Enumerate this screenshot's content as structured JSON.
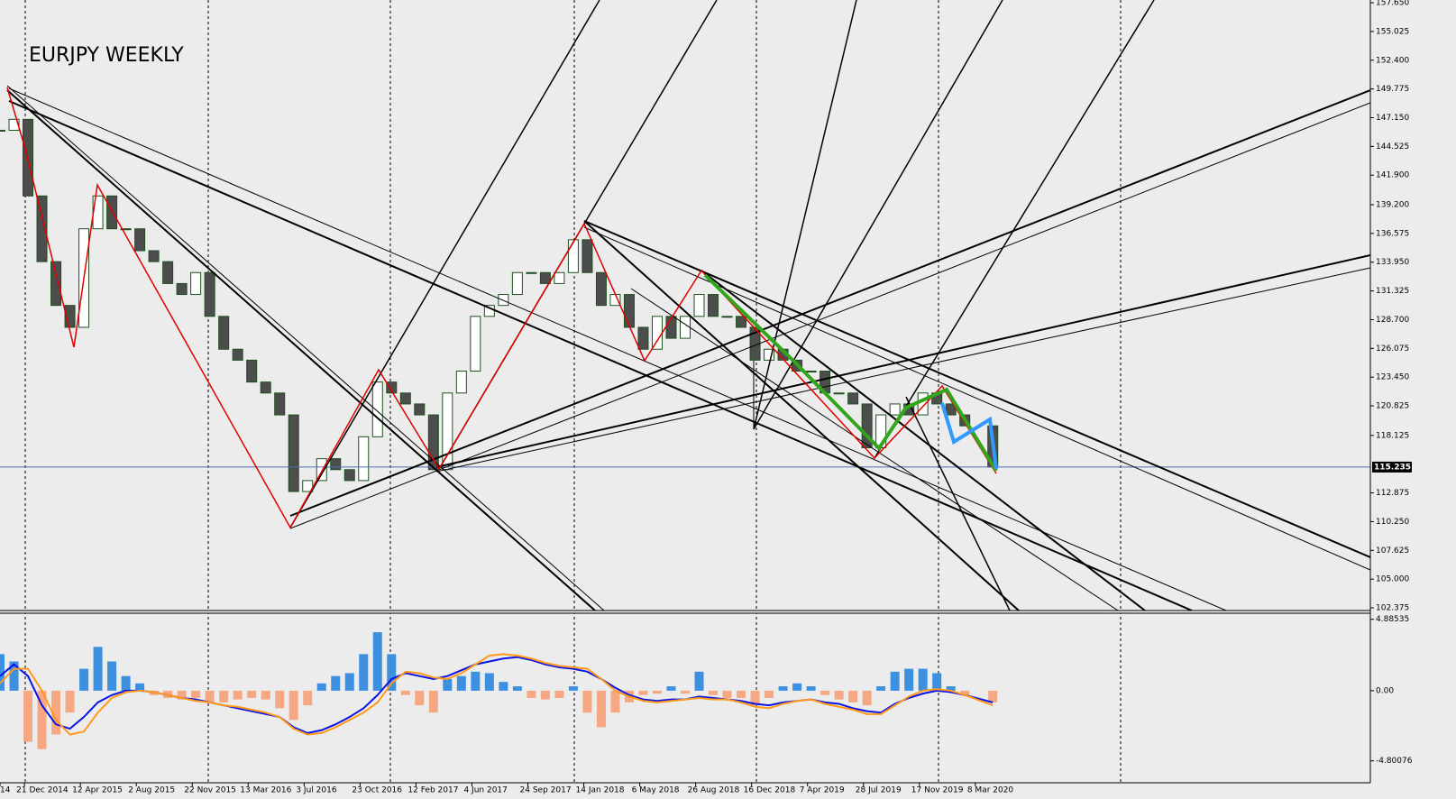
{
  "chart_data": [
    {
      "type": "candlestick",
      "title": "EURJPY WEEKLY",
      "x": [
        "2014-11-02",
        "2014-11-30",
        "2014-12-28",
        "2015-01-25",
        "2015-02-22",
        "2015-03-22",
        "2015-04-19",
        "2015-05-17",
        "2015-06-14",
        "2015-07-12",
        "2015-08-09",
        "2015-09-06",
        "2015-10-04",
        "2015-11-01",
        "2015-11-29",
        "2015-12-27",
        "2016-01-24",
        "2016-02-21",
        "2016-03-20",
        "2016-04-17",
        "2016-05-15",
        "2016-06-12",
        "2016-07-10",
        "2016-08-07",
        "2016-09-04",
        "2016-10-02",
        "2016-10-30",
        "2016-11-27",
        "2016-12-25",
        "2017-01-22",
        "2017-02-19",
        "2017-03-19",
        "2017-04-16",
        "2017-05-14",
        "2017-06-11",
        "2017-07-09",
        "2017-08-06",
        "2017-09-03",
        "2017-10-01",
        "2017-10-29",
        "2017-11-26",
        "2017-12-24",
        "2018-01-21",
        "2018-02-18",
        "2018-03-18",
        "2018-04-15",
        "2018-05-13",
        "2018-06-10",
        "2018-07-08",
        "2018-08-05",
        "2018-09-02",
        "2018-09-30",
        "2018-10-28",
        "2018-11-25",
        "2018-12-23",
        "2019-01-20",
        "2019-02-17",
        "2019-03-17",
        "2019-04-14",
        "2019-05-12",
        "2019-06-09",
        "2019-07-07",
        "2019-08-04",
        "2019-09-01",
        "2019-09-29",
        "2019-10-27",
        "2019-11-24",
        "2019-12-22",
        "2020-01-19",
        "2020-02-16",
        "2020-04-12"
      ],
      "values": [
        146,
        147,
        140,
        134,
        130,
        128,
        137,
        140,
        137,
        137,
        135,
        134,
        132,
        131,
        133,
        129,
        126,
        125,
        123,
        122,
        120,
        113,
        114,
        116,
        115,
        114,
        118,
        123,
        122,
        121,
        120,
        115,
        122,
        124,
        129,
        130,
        131,
        133,
        133,
        132,
        133,
        136,
        133,
        130,
        131,
        128,
        126,
        129,
        127,
        129,
        131,
        129,
        129,
        128,
        125,
        126,
        125,
        124,
        124,
        122,
        122,
        121,
        117,
        120,
        121,
        120,
        122,
        121,
        120,
        119,
        115.235
      ],
      "bull_color": "#ffffff",
      "bear_color": "#4d4d4d",
      "outline_color": "#1f4f1f",
      "last_price": {
        "value": 115.235,
        "label": "115.235"
      },
      "xlim": [
        "2014-11-02",
        "2022-05-08"
      ],
      "ylim": [
        102.13,
        157.9
      ],
      "xticks": [
        {
          "value": "2014-11-02",
          "label": "14"
        },
        {
          "value": "2014-12-21",
          "label": "21 Dec 2014"
        },
        {
          "value": "2015-04-12",
          "label": "12 Apr 2015"
        },
        {
          "value": "2015-08-02",
          "label": "2 Aug 2015"
        },
        {
          "value": "2015-11-22",
          "label": "22 Nov 2015"
        },
        {
          "value": "2016-03-13",
          "label": "13 Mar 2016"
        },
        {
          "value": "2016-07-03",
          "label": "3 Jul 2016"
        },
        {
          "value": "2016-10-23",
          "label": "23 Oct 2016"
        },
        {
          "value": "2017-02-12",
          "label": "12 Feb 2017"
        },
        {
          "value": "2017-06-04",
          "label": "4 Jun 2017"
        },
        {
          "value": "2017-09-24",
          "label": "24 Sep 2017"
        },
        {
          "value": "2018-01-14",
          "label": "14 Jan 2018"
        },
        {
          "value": "2018-05-06",
          "label": "6 May 2018"
        },
        {
          "value": "2018-08-26",
          "label": "26 Aug 2018"
        },
        {
          "value": "2018-12-16",
          "label": "16 Dec 2018"
        },
        {
          "value": "2019-04-07",
          "label": "7 Apr 2019"
        },
        {
          "value": "2019-07-28",
          "label": "28 Jul 2019"
        },
        {
          "value": "2019-11-17",
          "label": "17 Nov 2019"
        },
        {
          "value": "2020-03-08",
          "label": "8 Mar 2020"
        }
      ],
      "yticks": [
        {
          "value": 157.65,
          "label": "157.650"
        },
        {
          "value": 155.025,
          "label": "155.025"
        },
        {
          "value": 152.4,
          "label": "152.400"
        },
        {
          "value": 149.775,
          "label": "149.775"
        },
        {
          "value": 147.15,
          "label": "147.150"
        },
        {
          "value": 144.525,
          "label": "144.525"
        },
        {
          "value": 141.9,
          "label": "141.900"
        },
        {
          "value": 139.2,
          "label": "139.200"
        },
        {
          "value": 136.575,
          "label": "136.575"
        },
        {
          "value": 133.95,
          "label": "133.950"
        },
        {
          "value": 131.325,
          "label": "131.325"
        },
        {
          "value": 128.7,
          "label": "128.700"
        },
        {
          "value": 126.075,
          "label": "126.075"
        },
        {
          "value": 123.45,
          "label": "123.450"
        },
        {
          "value": 120.825,
          "label": "120.825"
        },
        {
          "value": 118.125,
          "label": "118.125"
        },
        {
          "value": 112.875,
          "label": "112.875"
        },
        {
          "value": 110.25,
          "label": "110.250"
        },
        {
          "value": 107.625,
          "label": "107.625"
        },
        {
          "value": 105,
          "label": "105.000"
        },
        {
          "value": 102.375,
          "label": "102.375"
        }
      ]
    },
    {
      "type": "macd",
      "histogram": [
        2.5,
        2.0,
        -3.5,
        -4.0,
        -3.0,
        -1.5,
        1.5,
        3.0,
        2.0,
        1.0,
        0.5,
        -0.3,
        -0.5,
        -0.6,
        -0.5,
        -0.8,
        -0.8,
        -0.6,
        -0.5,
        -0.6,
        -1.2,
        -2.0,
        -1.0,
        0.5,
        1.0,
        1.2,
        2.5,
        4.0,
        2.5,
        -0.3,
        -1.0,
        -1.5,
        0.8,
        1.0,
        1.3,
        1.2,
        0.6,
        0.3,
        -0.5,
        -0.6,
        -0.5,
        0.3,
        -1.5,
        -2.5,
        -1.5,
        -0.8,
        -0.3,
        -0.2,
        0.3,
        -0.2,
        1.3,
        -0.3,
        -0.5,
        -0.5,
        -1.0,
        -0.5,
        0.3,
        0.5,
        0.3,
        -0.3,
        -0.6,
        -0.8,
        -1.0,
        0.3,
        1.3,
        1.5,
        1.5,
        1.2,
        0.3,
        -0.3,
        -0.8
      ],
      "positive_color": "#3d8fe0",
      "negative_color": "#f6a882",
      "series": [
        {
          "color": "#0a14e6",
          "values": [
            1.0,
            1.8,
            1.0,
            -1.0,
            -2.3,
            -2.6,
            -1.8,
            -0.8,
            -0.3,
            0.0,
            0.0,
            -0.1,
            -0.3,
            -0.5,
            -0.6,
            -0.8,
            -1.0,
            -1.2,
            -1.4,
            -1.6,
            -1.8,
            -2.5,
            -2.9,
            -2.7,
            -2.3,
            -1.8,
            -1.2,
            -0.3,
            0.8,
            1.2,
            1.0,
            0.8,
            1.0,
            1.4,
            1.8,
            2.0,
            2.2,
            2.3,
            2.1,
            1.8,
            1.6,
            1.5,
            1.3,
            0.8,
            0.2,
            -0.3,
            -0.6,
            -0.7,
            -0.6,
            -0.6,
            -0.4,
            -0.5,
            -0.6,
            -0.7,
            -0.9,
            -1.0,
            -0.8,
            -0.7,
            -0.6,
            -0.8,
            -0.9,
            -1.2,
            -1.4,
            -1.5,
            -0.9,
            -0.5,
            -0.2,
            0.0,
            -0.1,
            -0.3,
            -0.8
          ]
        },
        {
          "color": "#ff9a1a",
          "values": [
            0.5,
            1.5,
            1.5,
            0.0,
            -2.0,
            -3.0,
            -2.8,
            -1.5,
            -0.5,
            -0.1,
            0.0,
            -0.1,
            -0.3,
            -0.5,
            -0.7,
            -0.8,
            -1.0,
            -1.1,
            -1.3,
            -1.5,
            -1.8,
            -2.6,
            -3.0,
            -2.9,
            -2.5,
            -2.0,
            -1.5,
            -0.8,
            0.5,
            1.3,
            1.2,
            0.9,
            0.8,
            1.2,
            1.8,
            2.4,
            2.5,
            2.4,
            2.2,
            1.9,
            1.7,
            1.6,
            1.5,
            0.8,
            0.0,
            -0.4,
            -0.7,
            -0.8,
            -0.7,
            -0.6,
            -0.5,
            -0.6,
            -0.6,
            -0.8,
            -1.1,
            -1.2,
            -0.9,
            -0.7,
            -0.6,
            -0.9,
            -1.1,
            -1.3,
            -1.6,
            -1.6,
            -1.0,
            -0.4,
            0.0,
            0.1,
            0.0,
            -0.3,
            -1.0
          ]
        }
      ],
      "ylim": [
        -6.3,
        5.3
      ],
      "yticks": [
        4.88535,
        {
          "value": 0,
          "label": "0.00"
        },
        -4.80076
      ]
    }
  ]
}
